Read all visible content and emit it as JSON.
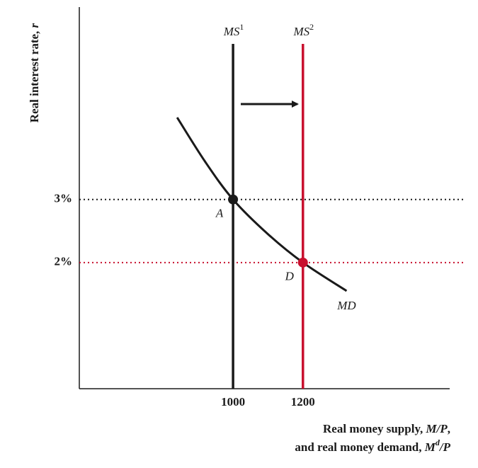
{
  "chart_data": {
    "type": "money-market",
    "ylabel": [
      {
        "text": "Real interest rate, ",
        "style": "normal"
      },
      {
        "text": "r",
        "style": "italic"
      }
    ],
    "xlabel": [
      [
        {
          "text": "Real money supply, ",
          "style": "normal"
        },
        {
          "text": "M/P",
          "style": "italic"
        },
        {
          "text": ",",
          "style": "normal"
        }
      ],
      [
        {
          "text": "and real money demand, ",
          "style": "normal"
        },
        {
          "text": "M",
          "style": "italic"
        },
        {
          "text": "d",
          "style": "sup"
        },
        {
          "text": "/P",
          "style": "italic"
        }
      ]
    ],
    "xlim": [
      560,
      1620
    ],
    "ylim": [
      0,
      6.05
    ],
    "xticks": [
      1000,
      1200
    ],
    "xtick_colors": [
      "#1a1a1a",
      "#c8102e"
    ],
    "yticks": [
      {
        "value": 3,
        "label": "3%"
      },
      {
        "value": 2,
        "label": "2%"
      }
    ],
    "ytick_colors": [
      "#1a1a1a",
      "#c8102e"
    ],
    "supply": [
      {
        "name": "MS",
        "superscript": "1",
        "x": 1000,
        "color": "#1a1a1a"
      },
      {
        "name": "MS",
        "superscript": "2",
        "x": 1200,
        "color": "#c8102e"
      }
    ],
    "demand": {
      "name": "MD",
      "color": "#1a1a1a",
      "x": [
        840,
        920,
        1000,
        1100,
        1200,
        1325
      ],
      "values": [
        4.3,
        3.6,
        3,
        2.45,
        2,
        1.55
      ]
    },
    "points": [
      {
        "label": "A",
        "x": 1000,
        "y": 3,
        "color": "#1a1a1a"
      },
      {
        "label": "D",
        "x": 1200,
        "y": 2,
        "color": "#c8102e"
      }
    ]
  }
}
